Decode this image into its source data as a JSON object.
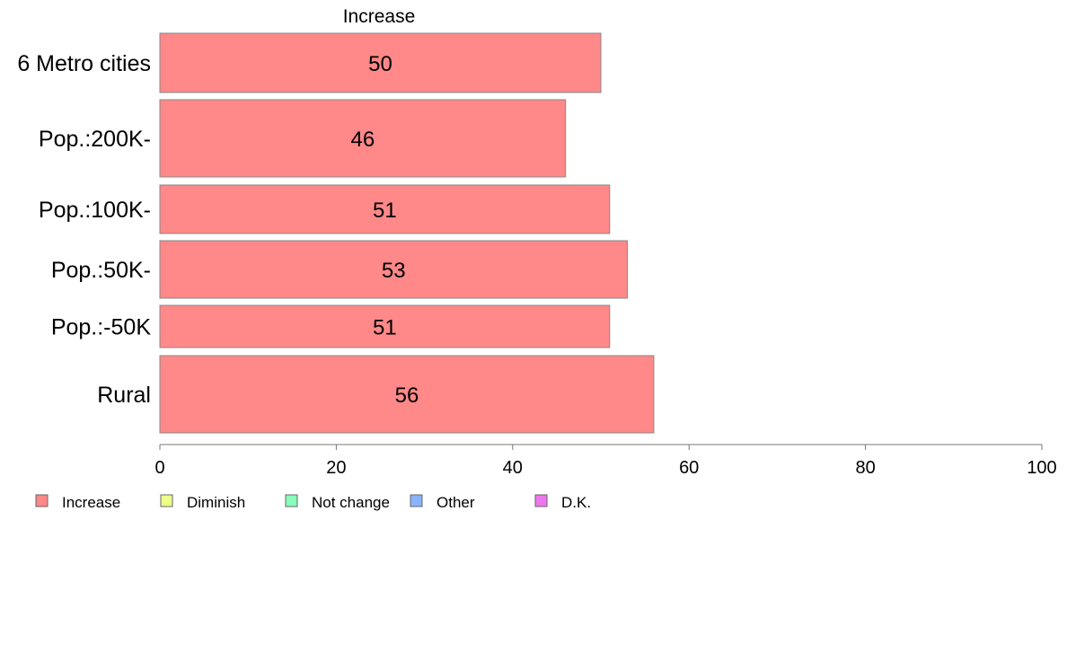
{
  "chart_data": {
    "type": "bar",
    "orientation": "horizontal",
    "stacked": true,
    "title": "Increase",
    "categories": [
      "6 Metro cities",
      "Pop.:200K-",
      "Pop.:100K-",
      "Pop.:50K-",
      "Pop.:-50K",
      "Rural"
    ],
    "series": [
      {
        "name": "Increase",
        "values": [
          50,
          46,
          51,
          53,
          51,
          56
        ],
        "color": "#ff8888"
      }
    ],
    "legend": [
      {
        "label": "Increase",
        "color": "#ff8888"
      },
      {
        "label": "Diminish",
        "color": "#eeff88"
      },
      {
        "label": "Not change",
        "color": "#88ffbb"
      },
      {
        "label": "Other",
        "color": "#88b4ff"
      },
      {
        "label": "D.K.",
        "color": "#ee77ee"
      }
    ],
    "xlim": [
      0,
      100
    ],
    "xticks": [
      0,
      20,
      40,
      60,
      80,
      100
    ],
    "grid": false,
    "legend_position": "bottom-left"
  }
}
